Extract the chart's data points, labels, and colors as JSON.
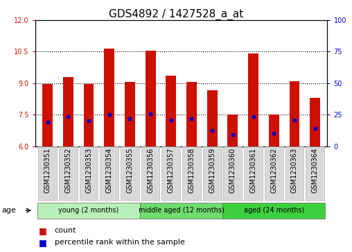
{
  "title": "GDS4892 / 1427528_a_at",
  "samples": [
    "GSM1230351",
    "GSM1230352",
    "GSM1230353",
    "GSM1230354",
    "GSM1230355",
    "GSM1230356",
    "GSM1230357",
    "GSM1230358",
    "GSM1230359",
    "GSM1230360",
    "GSM1230361",
    "GSM1230362",
    "GSM1230363",
    "GSM1230364"
  ],
  "counts": [
    8.95,
    9.3,
    8.95,
    10.65,
    9.07,
    10.55,
    9.35,
    9.05,
    8.65,
    7.5,
    10.4,
    7.5,
    9.1,
    8.3
  ],
  "percentiles": [
    7.15,
    7.4,
    7.2,
    7.5,
    7.3,
    7.55,
    7.25,
    7.3,
    6.75,
    6.55,
    7.4,
    6.6,
    7.25,
    6.85
  ],
  "groups": [
    {
      "label": "young (2 months)",
      "start": 0,
      "end": 4
    },
    {
      "label": "middle aged (12 months)",
      "start": 5,
      "end": 8
    },
    {
      "label": "aged (24 months)",
      "start": 9,
      "end": 13
    }
  ],
  "group_colors": [
    "#b8f0b8",
    "#6edc6e",
    "#3ecf3e"
  ],
  "ylim_left": [
    6,
    12
  ],
  "ylim_right": [
    0,
    100
  ],
  "yticks_left": [
    6,
    7.5,
    9,
    10.5,
    12
  ],
  "yticks_right": [
    0,
    25,
    50,
    75,
    100
  ],
  "bar_color": "#CC1100",
  "percentile_color": "#0000CC",
  "bar_width": 0.5,
  "base_value": 6,
  "title_fontsize": 11,
  "tick_fontsize": 7,
  "label_fontsize": 8,
  "age_label": "age",
  "xticklabel_bg": "#d8d8d8"
}
